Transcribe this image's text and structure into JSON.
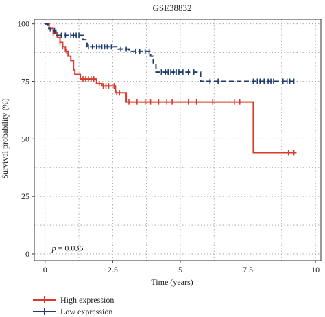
{
  "chart_data": {
    "type": "line",
    "title": "GSE38832",
    "xlabel": "Time (years)",
    "ylabel": "Survival probability (%)",
    "xlim": [
      -0.4,
      10.2
    ],
    "ylim": [
      -3,
      102
    ],
    "x_ticks": [
      0,
      2.5,
      5,
      7.5,
      10
    ],
    "x_tick_labels": [
      "0",
      "2.5",
      "5",
      "7.5",
      "10"
    ],
    "y_ticks": [
      0,
      25,
      50,
      75,
      100
    ],
    "y_tick_labels": [
      "0",
      "25",
      "50",
      "75",
      "100"
    ],
    "x_minor_gridlines": [
      1.25,
      3.75,
      6.25,
      8.75
    ],
    "y_minor_gridlines": [
      12.5,
      37.5,
      62.5,
      87.5
    ],
    "grid": "dotted",
    "legend_position": "bottom-left",
    "annotation": {
      "p_symbol": "p",
      "p_rest": " = 0.036",
      "x": 0.25,
      "y": 1.3
    },
    "series": [
      {
        "name": "High expression",
        "color": "#d93a2b",
        "steps": [
          [
            0,
            100
          ],
          [
            0.15,
            98
          ],
          [
            0.3,
            96
          ],
          [
            0.45,
            94
          ],
          [
            0.55,
            92
          ],
          [
            0.65,
            90
          ],
          [
            0.75,
            88
          ],
          [
            0.85,
            86
          ],
          [
            0.95,
            84
          ],
          [
            1.05,
            80
          ],
          [
            1.1,
            78
          ],
          [
            1.3,
            76
          ],
          [
            1.9,
            74
          ],
          [
            2.1,
            73
          ],
          [
            2.6,
            70
          ],
          [
            3.0,
            66
          ],
          [
            7.7,
            66
          ],
          [
            7.7,
            44
          ],
          [
            9.3,
            44
          ]
        ],
        "censors": [
          [
            0.3,
            96
          ],
          [
            0.55,
            92
          ],
          [
            0.65,
            90
          ],
          [
            0.8,
            88
          ],
          [
            1.4,
            76
          ],
          [
            1.5,
            76
          ],
          [
            1.6,
            76
          ],
          [
            1.7,
            76
          ],
          [
            1.8,
            76
          ],
          [
            2.0,
            74
          ],
          [
            2.15,
            73
          ],
          [
            2.25,
            73
          ],
          [
            2.35,
            73
          ],
          [
            2.55,
            73
          ],
          [
            2.65,
            70
          ],
          [
            2.75,
            70
          ],
          [
            3.1,
            66
          ],
          [
            3.4,
            66
          ],
          [
            3.7,
            66
          ],
          [
            3.9,
            66
          ],
          [
            4.2,
            66
          ],
          [
            4.5,
            66
          ],
          [
            4.7,
            66
          ],
          [
            5.3,
            66
          ],
          [
            5.6,
            66
          ],
          [
            6.2,
            66
          ],
          [
            7.0,
            66
          ],
          [
            7.2,
            66
          ],
          [
            9.0,
            44
          ],
          [
            9.2,
            44
          ]
        ]
      },
      {
        "name": "Low expression",
        "color": "#1f3b6e",
        "dashed": true,
        "steps": [
          [
            0,
            100
          ],
          [
            0.1,
            98
          ],
          [
            0.2,
            97
          ],
          [
            0.4,
            95
          ],
          [
            1.4,
            93
          ],
          [
            1.55,
            90
          ],
          [
            2.7,
            89
          ],
          [
            3.1,
            88
          ],
          [
            3.9,
            86
          ],
          [
            4.0,
            83
          ],
          [
            4.1,
            79
          ],
          [
            5.75,
            75
          ],
          [
            9.3,
            75
          ]
        ],
        "censors": [
          [
            0.35,
            97
          ],
          [
            0.6,
            95
          ],
          [
            0.75,
            95
          ],
          [
            0.95,
            95
          ],
          [
            1.05,
            95
          ],
          [
            1.15,
            95
          ],
          [
            1.25,
            95
          ],
          [
            1.6,
            90
          ],
          [
            1.75,
            90
          ],
          [
            1.9,
            90
          ],
          [
            2.0,
            90
          ],
          [
            2.1,
            90
          ],
          [
            2.2,
            90
          ],
          [
            2.3,
            90
          ],
          [
            2.45,
            90
          ],
          [
            2.8,
            89
          ],
          [
            3.0,
            89
          ],
          [
            3.35,
            88
          ],
          [
            3.5,
            88
          ],
          [
            3.7,
            88
          ],
          [
            3.85,
            88
          ],
          [
            4.3,
            79
          ],
          [
            4.45,
            79
          ],
          [
            4.55,
            79
          ],
          [
            4.65,
            79
          ],
          [
            4.75,
            79
          ],
          [
            4.85,
            79
          ],
          [
            4.95,
            79
          ],
          [
            5.1,
            79
          ],
          [
            5.3,
            79
          ],
          [
            5.5,
            79
          ],
          [
            6.1,
            75
          ],
          [
            6.4,
            75
          ],
          [
            7.7,
            75
          ],
          [
            7.85,
            75
          ],
          [
            7.95,
            75
          ],
          [
            8.1,
            75
          ],
          [
            8.25,
            75
          ],
          [
            8.35,
            75
          ],
          [
            8.45,
            75
          ],
          [
            8.8,
            75
          ],
          [
            8.95,
            75
          ],
          [
            9.05,
            75
          ],
          [
            9.2,
            75
          ]
        ]
      }
    ]
  }
}
